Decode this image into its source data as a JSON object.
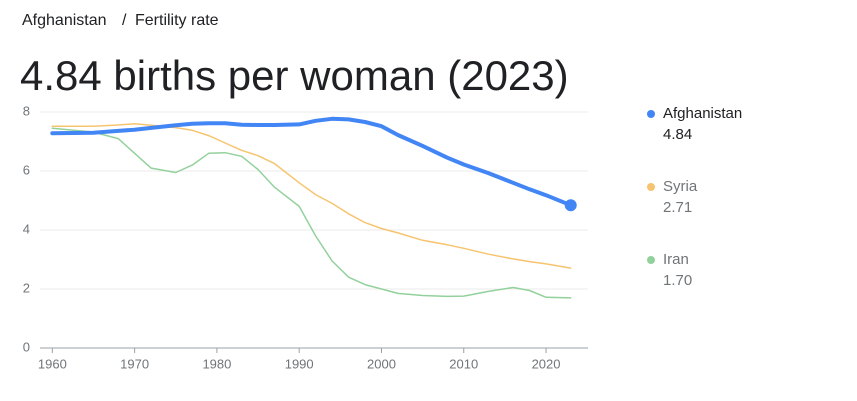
{
  "breadcrumb": [
    "Afghanistan",
    "Fertility rate"
  ],
  "breadcrumb_separator": "/",
  "chart_data": {
    "type": "line",
    "title": "4.84 births per woman (2023)",
    "x": [
      1960,
      1965,
      1968,
      1970,
      1972,
      1975,
      1977,
      1979,
      1981,
      1983,
      1985,
      1987,
      1990,
      1992,
      1994,
      1996,
      1998,
      2000,
      2002,
      2005,
      2008,
      2010,
      2013,
      2016,
      2018,
      2020,
      2023
    ],
    "series": [
      {
        "name": "Afghanistan",
        "color": "#4285f4",
        "width": 4,
        "end_dot": true,
        "legend_value": "4.84",
        "values": [
          7.28,
          7.3,
          7.36,
          7.4,
          7.46,
          7.55,
          7.6,
          7.62,
          7.62,
          7.57,
          7.56,
          7.56,
          7.58,
          7.7,
          7.77,
          7.75,
          7.66,
          7.52,
          7.22,
          6.85,
          6.45,
          6.22,
          5.93,
          5.6,
          5.38,
          5.18,
          4.84
        ]
      },
      {
        "name": "Syria",
        "color": "#f6c46f",
        "width": 1.5,
        "end_dot": false,
        "legend_value": "2.71",
        "values": [
          7.52,
          7.52,
          7.56,
          7.6,
          7.55,
          7.47,
          7.38,
          7.2,
          6.95,
          6.7,
          6.52,
          6.25,
          5.6,
          5.2,
          4.9,
          4.55,
          4.25,
          4.05,
          3.9,
          3.65,
          3.5,
          3.38,
          3.18,
          3.02,
          2.93,
          2.85,
          2.71
        ]
      },
      {
        "name": "Iran",
        "color": "#93d19c",
        "width": 1.5,
        "end_dot": false,
        "legend_value": "1.70",
        "values": [
          7.45,
          7.32,
          7.1,
          6.6,
          6.1,
          5.95,
          6.2,
          6.6,
          6.62,
          6.5,
          6.05,
          5.45,
          4.8,
          3.8,
          2.95,
          2.4,
          2.15,
          2.0,
          1.85,
          1.78,
          1.75,
          1.76,
          1.92,
          2.05,
          1.95,
          1.72,
          1.7
        ]
      }
    ],
    "xlim": [
      1958.5,
      2025.1
    ],
    "xticks": [
      1960,
      1970,
      1980,
      1990,
      2000,
      2010,
      2020
    ],
    "ylim": [
      0,
      8
    ],
    "yticks": [
      0,
      2,
      4,
      6,
      8
    ],
    "grid": true
  }
}
